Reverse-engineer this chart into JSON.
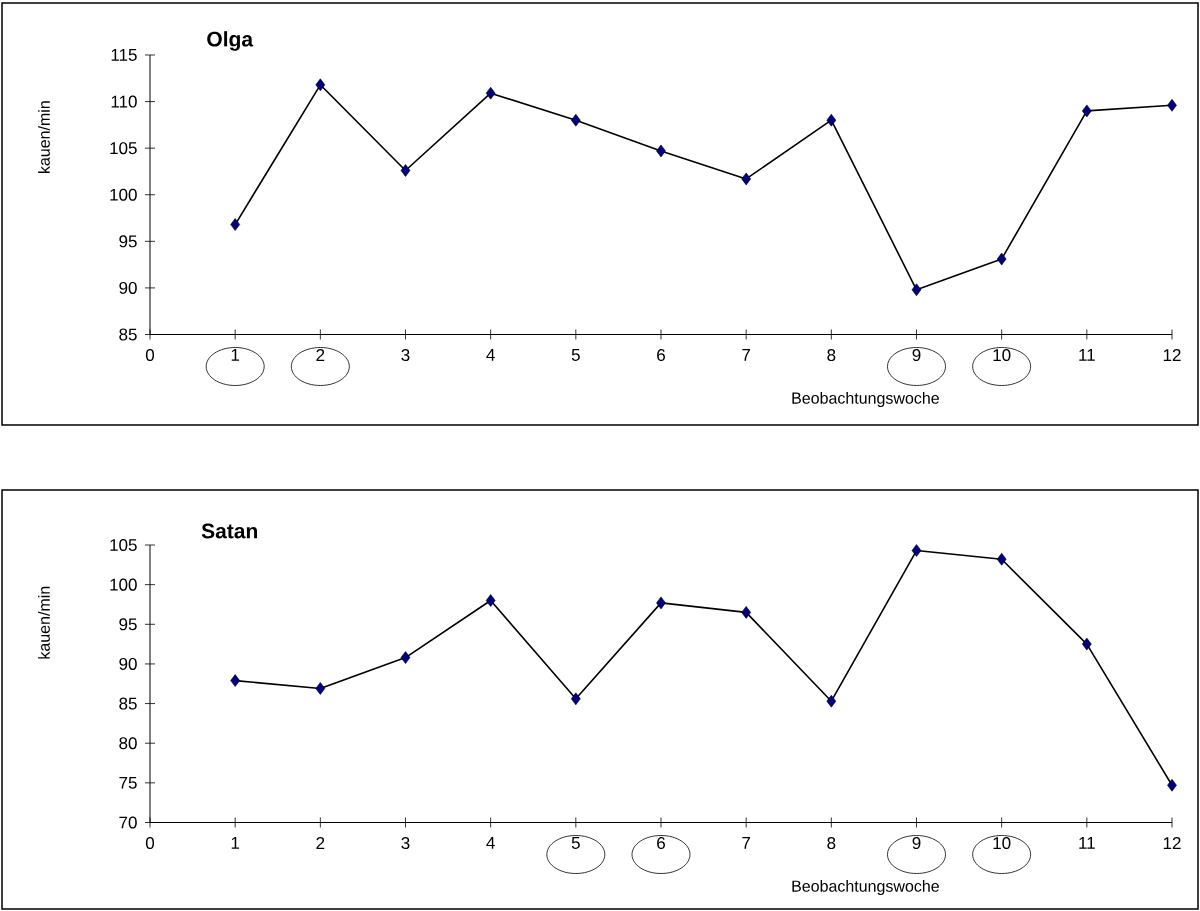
{
  "chart_data": [
    {
      "type": "line",
      "title": "Olga",
      "xlabel": "Beobachtungswoche",
      "ylabel": "kauen/min",
      "marker": "diamond",
      "xlim": [
        0,
        12
      ],
      "xticks": [
        0,
        1,
        2,
        3,
        4,
        5,
        6,
        7,
        8,
        9,
        10,
        11,
        12
      ],
      "ylim": [
        85,
        115
      ],
      "yticks": [
        85,
        90,
        95,
        100,
        105,
        110,
        115
      ],
      "x": [
        1,
        2,
        3,
        4,
        5,
        6,
        7,
        8,
        9,
        10,
        11,
        12
      ],
      "series": [
        {
          "color": "#000080",
          "values": [
            96.8,
            111.8,
            102.6,
            110.9,
            108.0,
            104.7,
            101.7,
            108.0,
            89.8,
            93.1,
            109.0,
            109.6
          ]
        }
      ]
    },
    {
      "type": "line",
      "title": "Satan",
      "xlabel": "Beobachtungswoche",
      "ylabel": "kauen/min",
      "marker": "diamond",
      "xlim": [
        0,
        12
      ],
      "xticks": [
        0,
        1,
        2,
        3,
        4,
        5,
        6,
        7,
        8,
        9,
        10,
        11,
        12
      ],
      "ylim": [
        70,
        105
      ],
      "yticks": [
        70,
        75,
        80,
        85,
        90,
        95,
        100,
        105
      ],
      "x": [
        1,
        2,
        3,
        4,
        5,
        6,
        7,
        8,
        9,
        10,
        11,
        12
      ],
      "series": [
        {
          "color": "#000080",
          "values": [
            87.9,
            86.9,
            90.8,
            98.0,
            85.6,
            97.7,
            96.5,
            85.3,
            104.3,
            103.2,
            92.5,
            74.7
          ]
        }
      ]
    }
  ]
}
